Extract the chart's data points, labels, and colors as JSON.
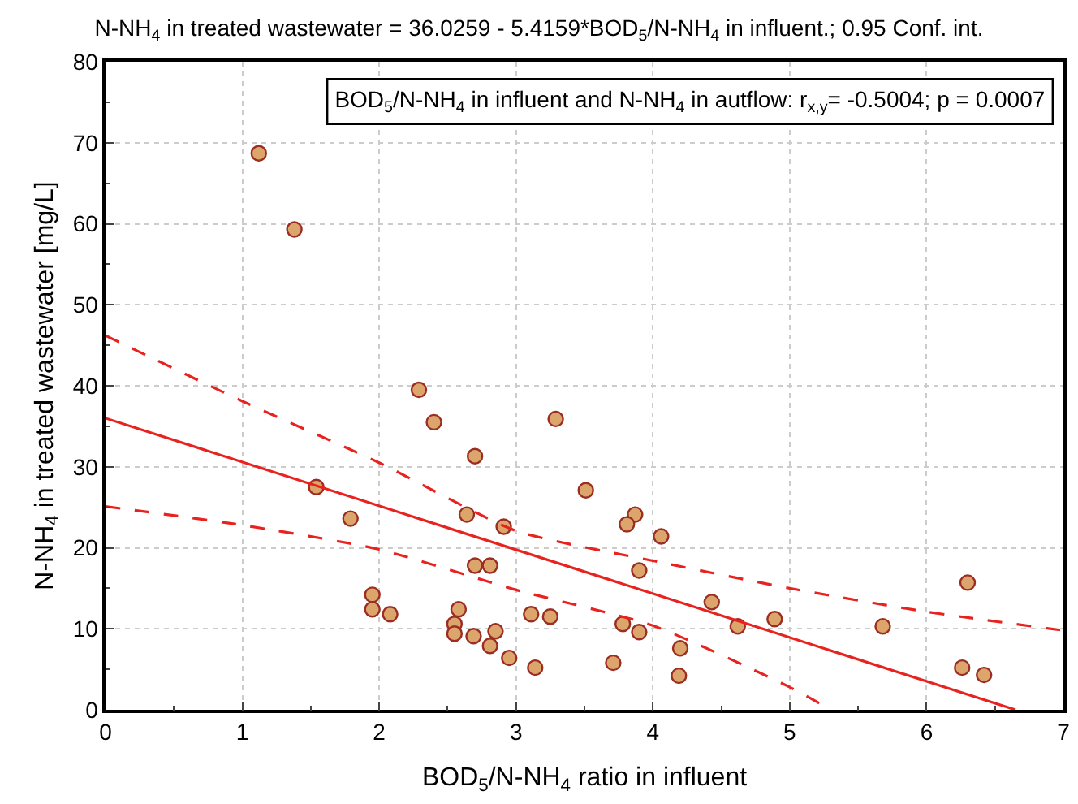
{
  "chart_data": {
    "type": "scatter",
    "title": "N-NH$_{4}$ in treated wastewater = 36.0259 - 5.4159*BOD$_{5}$/N-NH$_{4}$ in influent.; 0.95 Conf. int.",
    "xlabel": "BOD$_{5}$/N-NH$_{4}$ ratio in influent",
    "ylabel": "N-NH$_{4}$ in treated wastewater [mg/L]",
    "annotations": [
      "BOD$_{5}$/N-NH$_{4}$ in influent and N-NH$_{4}$ in autflow: r$_{x,y}$= -0.5004; p = 0.0007"
    ],
    "series": [
      {
        "color": "#dca56c",
        "marker": "circle",
        "x": [
          1.12,
          1.38,
          1.54,
          1.79,
          1.95,
          1.95,
          2.08,
          2.29,
          2.4,
          2.7,
          2.64,
          2.91,
          2.7,
          2.81,
          2.58,
          2.55,
          2.55,
          2.69,
          2.85,
          2.81,
          2.95,
          3.14,
          3.11,
          3.25,
          3.29,
          3.51,
          3.87,
          3.81,
          4.06,
          3.9,
          3.78,
          3.9,
          3.71,
          4.2,
          4.19,
          4.43,
          4.62,
          4.89,
          5.68,
          6.3,
          6.26,
          6.42
        ],
        "values": [
          68.7,
          59.3,
          27.5,
          23.6,
          14.2,
          12.4,
          11.8,
          39.5,
          35.5,
          31.3,
          24.1,
          22.6,
          17.8,
          17.8,
          12.4,
          10.6,
          9.4,
          9.1,
          9.7,
          7.9,
          6.4,
          5.2,
          11.8,
          11.5,
          35.9,
          27.1,
          24.1,
          22.9,
          21.4,
          17.2,
          10.6,
          9.6,
          5.8,
          7.6,
          4.2,
          13.3,
          10.3,
          11.2,
          10.3,
          15.7,
          5.2,
          4.3
        ]
      },
      {
        "type": "line",
        "color": "#e8231f",
        "line_style": "solid",
        "x": [
          0,
          6.65
        ],
        "values": [
          36.0,
          0
        ]
      },
      {
        "type": "line",
        "color": "#e8231f",
        "line_style": "dashed",
        "x": [
          0,
          1,
          2,
          3,
          4,
          5,
          6,
          7
        ],
        "values": [
          46.2,
          38.1,
          30.5,
          22.1,
          18.4,
          15.0,
          12.1,
          9.8
        ]
      },
      {
        "type": "line",
        "color": "#e8231f",
        "line_style": "dashed",
        "x": [
          0,
          1,
          2,
          3,
          4,
          5,
          5.3
        ],
        "values": [
          25.1,
          22.8,
          19.8,
          14.8,
          10.4,
          2.8,
          0
        ]
      }
    ],
    "xlim": [
      0,
      7
    ],
    "xticks": [
      0,
      1,
      2,
      3,
      4,
      5,
      6,
      7
    ],
    "ylim": [
      0,
      80
    ],
    "yticks": [
      0,
      10,
      20,
      30,
      40,
      50,
      60,
      70,
      80
    ],
    "grid": true,
    "legend": false
  }
}
